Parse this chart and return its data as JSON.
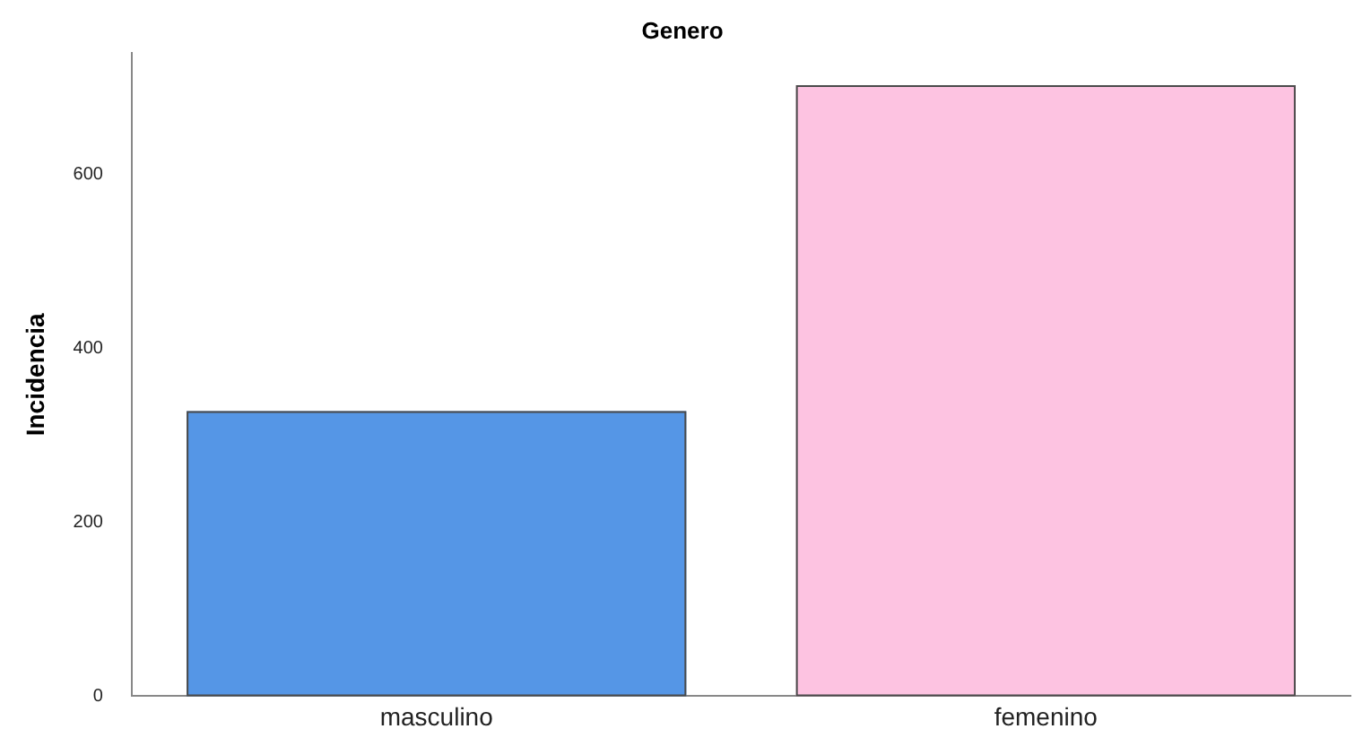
{
  "chart_data": {
    "type": "bar",
    "title": "Genero",
    "ylabel": "Incidencia",
    "categories": [
      "masculino",
      "femenino"
    ],
    "values": [
      328,
      703
    ],
    "colors": [
      "#5596e6",
      "#fdc3e1"
    ],
    "ylim": [
      0,
      740
    ],
    "yticks": [
      0,
      200,
      400,
      600
    ],
    "grid": false,
    "legend": false
  }
}
